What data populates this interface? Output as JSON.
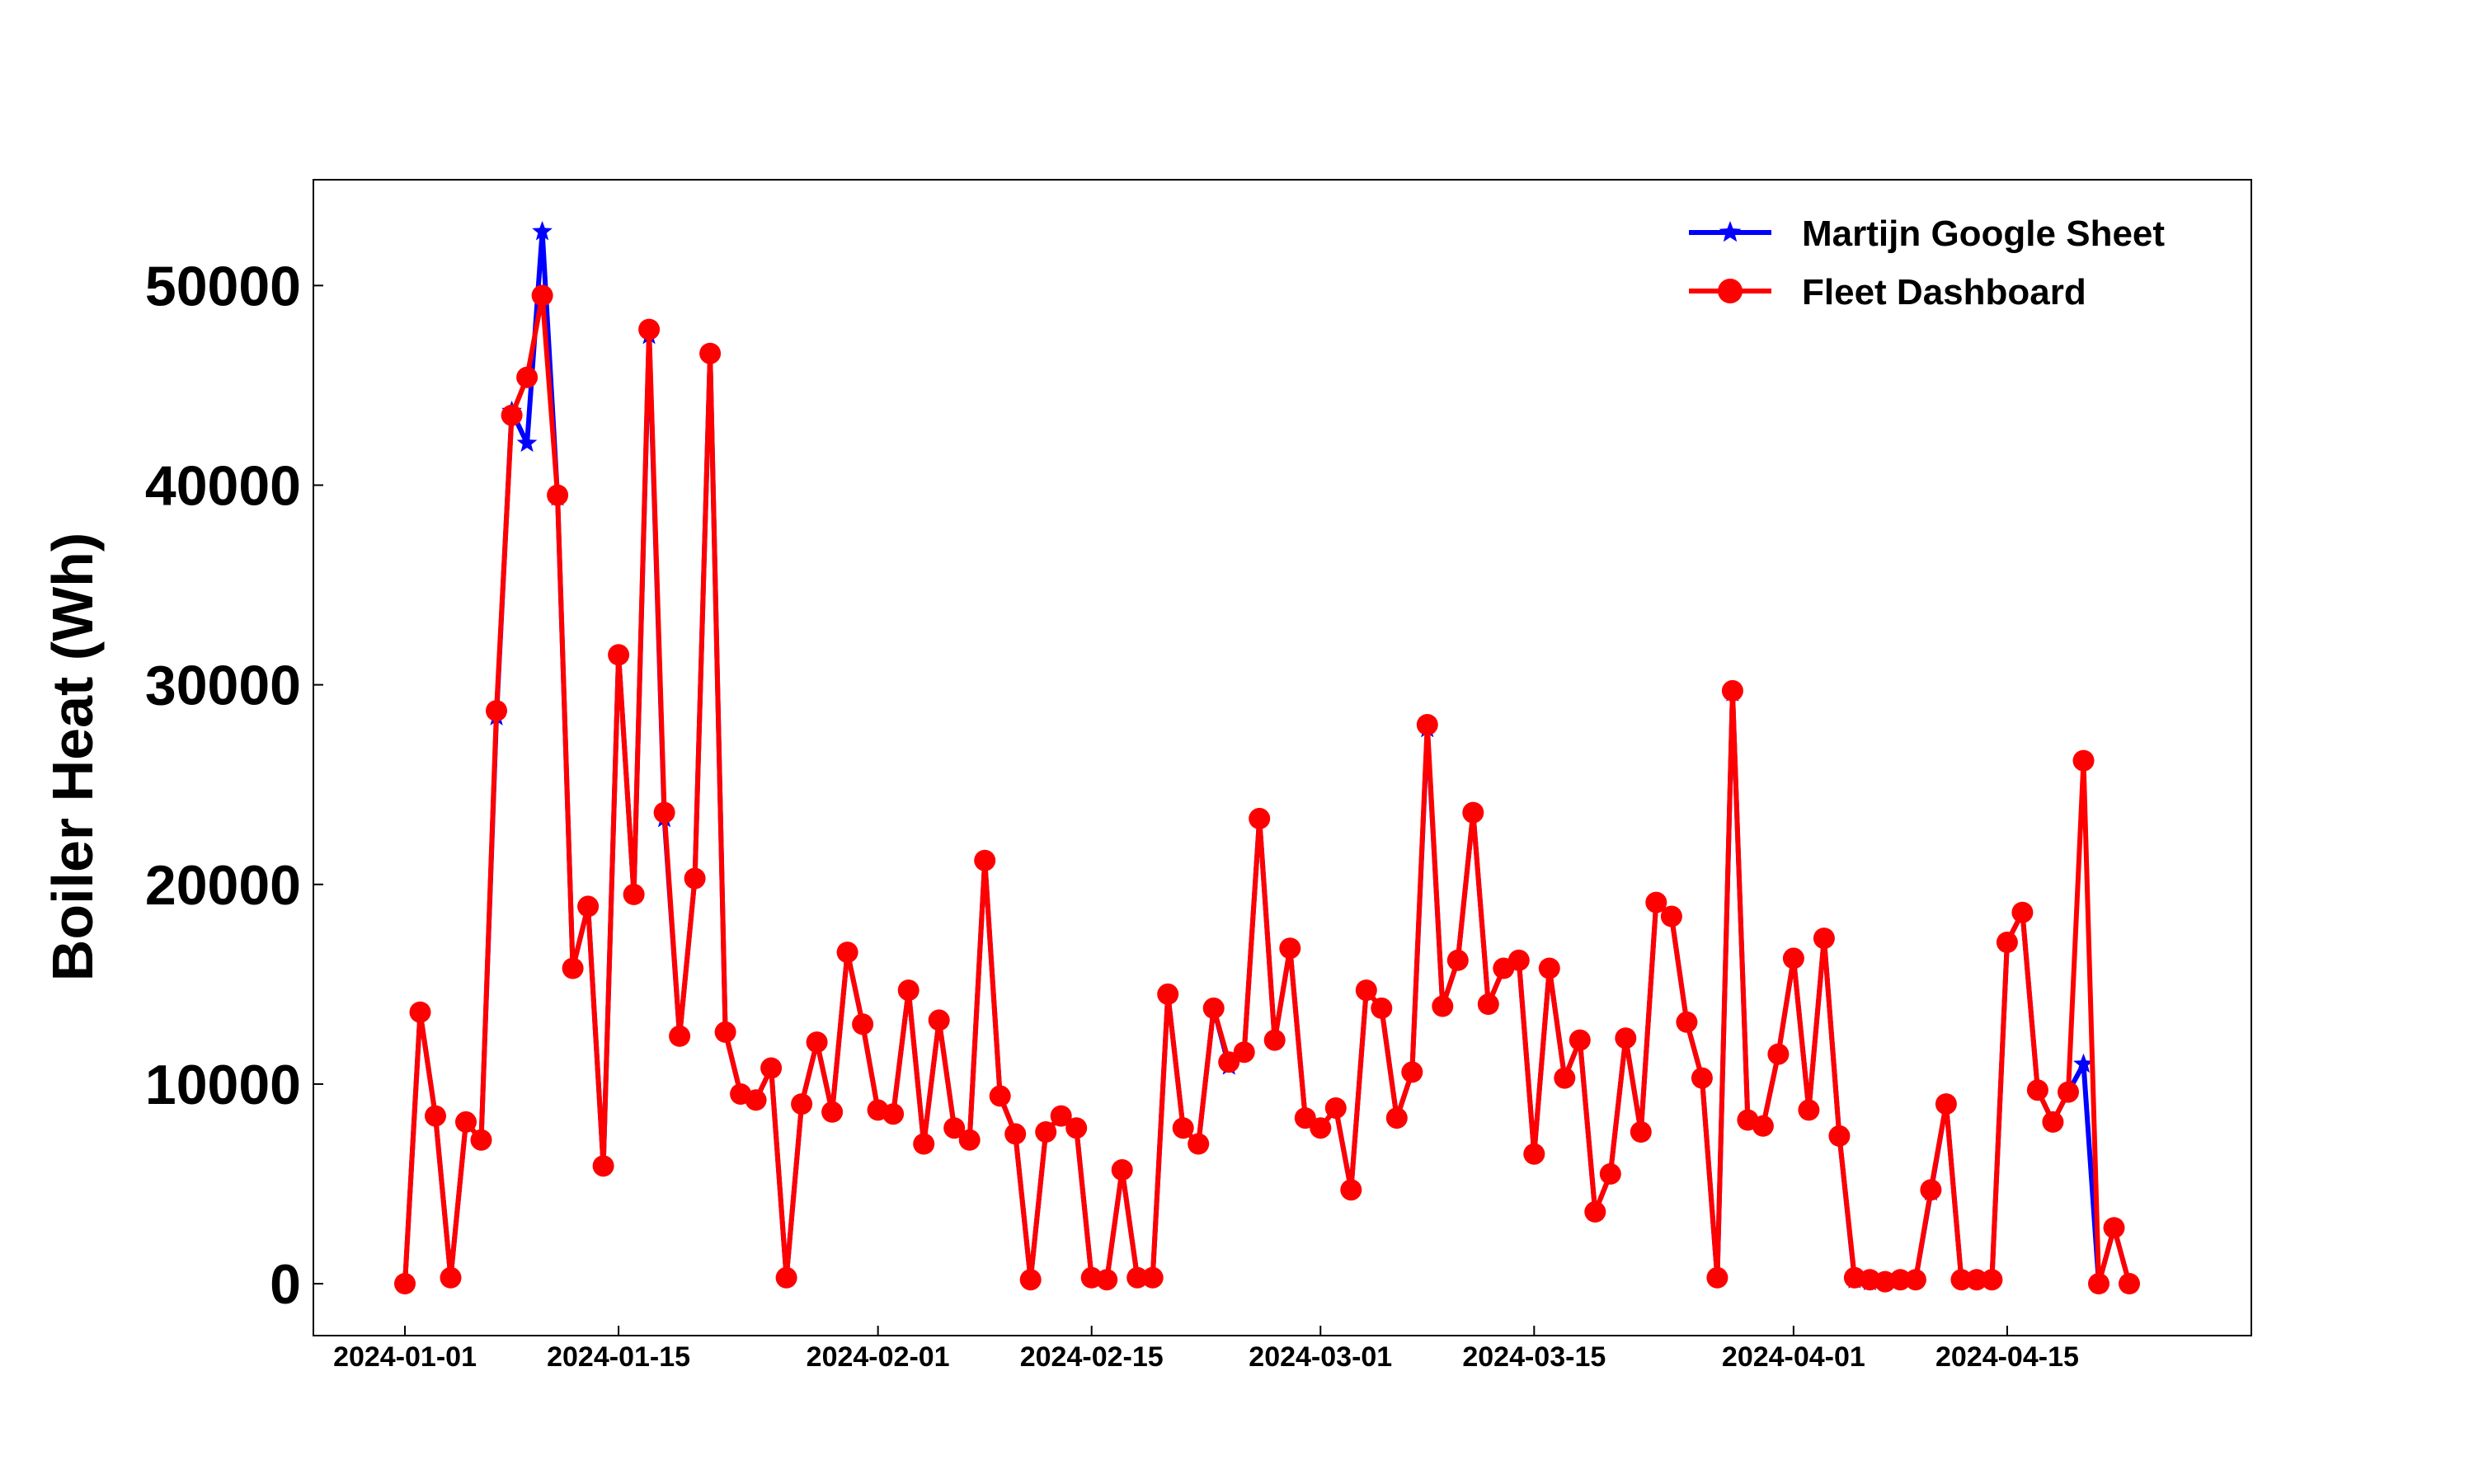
{
  "chart_data": {
    "type": "line",
    "title": "",
    "xlabel": "",
    "ylabel": "Boiler Heat (Wh)",
    "x_start": "2024-01-01",
    "x_ticks": [
      "2024-01-01",
      "2024-01-15",
      "2024-02-01",
      "2024-02-15",
      "2024-03-01",
      "2024-03-15",
      "2024-04-01",
      "2024-04-15"
    ],
    "y_ticks": [
      "0",
      "10000",
      "20000",
      "30000",
      "40000",
      "50000"
    ],
    "xlim": [
      "2023-12-26",
      "2024-05-01"
    ],
    "ylim": [
      -2600,
      55300
    ],
    "grid": false,
    "legend_position": "top-right",
    "series": [
      {
        "name": "Martijn Google Sheet",
        "color": "#0000ff",
        "marker": "star",
        "values": [
          0,
          13600,
          8400,
          300,
          8100,
          7200,
          28400,
          43700,
          42100,
          52700,
          39400,
          15800,
          18900,
          5900,
          31500,
          19500,
          47500,
          23300,
          12400,
          20300,
          46600,
          12600,
          9500,
          9200,
          10800,
          300,
          9000,
          12100,
          8600,
          16600,
          13000,
          8700,
          8500,
          14700,
          7000,
          13200,
          7800,
          7200,
          21200,
          9400,
          7500,
          200,
          7600,
          8400,
          7800,
          300,
          200,
          5700,
          300,
          300,
          14500,
          7800,
          7000,
          13800,
          10900,
          11600,
          23300,
          12200,
          16800,
          8300,
          7800,
          8800,
          4700,
          14700,
          13800,
          8300,
          10600,
          27800,
          13900,
          16200,
          23600,
          14000,
          15800,
          16200,
          6500,
          15800,
          10300,
          12200,
          3600,
          5500,
          12300,
          7600,
          19100,
          18400,
          13100,
          10300,
          300,
          29600,
          8200,
          7900,
          11500,
          16300,
          8700,
          17300,
          7400,
          200,
          100,
          100,
          200,
          200,
          4600,
          9000,
          200,
          200,
          200,
          17100,
          18600,
          9700,
          8100,
          9600,
          11000,
          0,
          2800,
          0
        ]
      },
      {
        "name": "Fleet Dashboard",
        "color": "#ff0000",
        "marker": "circle",
        "values": [
          0,
          13600,
          8400,
          300,
          8100,
          7200,
          28700,
          43500,
          45400,
          49500,
          39500,
          15800,
          18900,
          5900,
          31500,
          19500,
          47800,
          23600,
          12400,
          20300,
          46600,
          12600,
          9500,
          9200,
          10800,
          300,
          9000,
          12100,
          8600,
          16600,
          13000,
          8700,
          8500,
          14700,
          7000,
          13200,
          7800,
          7200,
          21200,
          9400,
          7500,
          200,
          7600,
          8400,
          7800,
          300,
          200,
          5700,
          300,
          300,
          14500,
          7800,
          7000,
          13800,
          11100,
          11600,
          23300,
          12200,
          16800,
          8300,
          7800,
          8800,
          4700,
          14700,
          13800,
          8300,
          10600,
          28000,
          13900,
          16200,
          23600,
          14000,
          15800,
          16200,
          6500,
          15800,
          10300,
          12200,
          3600,
          5500,
          12300,
          7600,
          19100,
          18400,
          13100,
          10300,
          300,
          29700,
          8200,
          7900,
          11500,
          16300,
          8700,
          17300,
          7400,
          300,
          200,
          100,
          200,
          200,
          4700,
          9000,
          200,
          200,
          200,
          17100,
          18600,
          9700,
          8100,
          9600,
          26200,
          0,
          2800,
          0
        ]
      }
    ]
  }
}
